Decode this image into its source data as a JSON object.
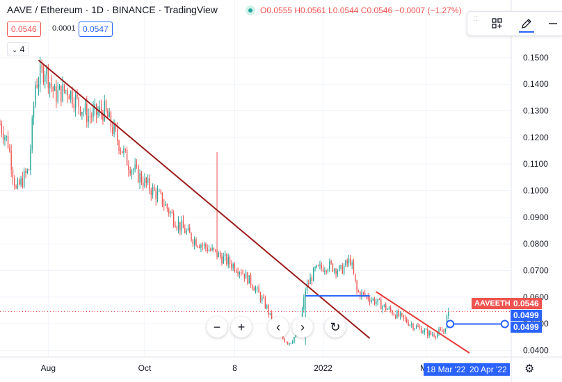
{
  "header": {
    "title": "AAVE / Ethereum · 1D · BINANCE · TradingView",
    "ohlc": "O0.0555 H0.0561 L0.0544 C0.0546 −0.0007 (−1.27%)"
  },
  "quote": {
    "bid": "0.0546",
    "spread": "0.0001",
    "ask": "0.0547"
  },
  "indicator_badge": "4",
  "nav_buttons": {
    "zoom_out": "−",
    "zoom_in": "+",
    "prev": "‹",
    "next": "›",
    "reset": "↻"
  },
  "price_scale": {
    "symbol": "AAVEETH",
    "last_price": "0.0546",
    "range_top": "0.0499",
    "range_bottom": "0.0499"
  },
  "date_range": {
    "start": "18 Mar '22",
    "end": "20 Apr '22"
  },
  "settings_icon": "gear-icon",
  "colors": {
    "up": "#26a69a",
    "down": "#ef5350",
    "trendline": "#9b1b1b",
    "red_trend": "#e53935",
    "blue": "#2962ff",
    "grid": "#f0f3fa"
  },
  "chart_data": {
    "type": "candlestick",
    "title": "AAVE / Ethereum · 1D · BINANCE · TradingView",
    "yticks": [
      "0.1500",
      "0.1400",
      "0.1300",
      "0.1200",
      "0.1100",
      "0.1000",
      "0.0900",
      "0.0800",
      "0.0700",
      "0.0600",
      "0.0500",
      "0.0400"
    ],
    "xticks": [
      "Aug",
      "Oct",
      "8",
      "2022",
      "Ma"
    ],
    "ylim": [
      0.0375,
      0.1565
    ],
    "x_range_days": [
      0,
      200
    ],
    "x_tick_positions_days": [
      30,
      90,
      146,
      201,
      265
    ],
    "x_tick_labels_order": [
      "Aug",
      "Oct",
      "8",
      "2022",
      "Ma"
    ],
    "grid": true,
    "anchors": [
      {
        "day": 0,
        "price": 0.125
      },
      {
        "day": 5,
        "price": 0.118
      },
      {
        "day": 10,
        "price": 0.1
      },
      {
        "day": 18,
        "price": 0.108
      },
      {
        "day": 22,
        "price": 0.14
      },
      {
        "day": 28,
        "price": 0.146
      },
      {
        "day": 34,
        "price": 0.136
      },
      {
        "day": 42,
        "price": 0.138
      },
      {
        "day": 55,
        "price": 0.128
      },
      {
        "day": 65,
        "price": 0.13
      },
      {
        "day": 80,
        "price": 0.11
      },
      {
        "day": 90,
        "price": 0.103
      },
      {
        "day": 100,
        "price": 0.097
      },
      {
        "day": 110,
        "price": 0.088
      },
      {
        "day": 120,
        "price": 0.082
      },
      {
        "day": 130,
        "price": 0.078
      },
      {
        "day": 140,
        "price": 0.074
      },
      {
        "day": 150,
        "price": 0.07
      },
      {
        "day": 158,
        "price": 0.064
      },
      {
        "day": 166,
        "price": 0.056
      },
      {
        "day": 172,
        "price": 0.046
      },
      {
        "day": 180,
        "price": 0.043
      },
      {
        "day": 186,
        "price": 0.047
      },
      {
        "day": 190,
        "price": 0.063
      },
      {
        "day": 196,
        "price": 0.07
      },
      {
        "day": 204,
        "price": 0.072
      },
      {
        "day": 212,
        "price": 0.07
      },
      {
        "day": 218,
        "price": 0.074
      },
      {
        "day": 222,
        "price": 0.062
      },
      {
        "day": 232,
        "price": 0.059
      },
      {
        "day": 245,
        "price": 0.054
      },
      {
        "day": 258,
        "price": 0.049
      },
      {
        "day": 268,
        "price": 0.046
      },
      {
        "day": 276,
        "price": 0.047
      },
      {
        "day": 279,
        "price": 0.0546
      }
    ],
    "spikes": [
      {
        "day": 135,
        "high": 0.1145
      },
      {
        "day": 190,
        "low": 0.042
      },
      {
        "day": 279,
        "high": 0.0561
      }
    ],
    "drawings": [
      {
        "type": "trendline",
        "color": "#9b1b1b",
        "from": {
          "day": 24,
          "price": 0.149
        },
        "to": {
          "day": 230,
          "price": 0.0445
        }
      },
      {
        "type": "trendline",
        "color": "#e53935",
        "from": {
          "day": 234,
          "price": 0.062
        },
        "to": {
          "day": 292,
          "price": 0.039
        }
      },
      {
        "type": "horizontal",
        "color": "#2962ff",
        "from": {
          "day": 190,
          "price": 0.0605
        },
        "to": {
          "day": 230,
          "price": 0.0605
        }
      },
      {
        "type": "price_range",
        "color": "#2962ff",
        "from": {
          "day": 280,
          "price": 0.0499
        },
        "to": {
          "day": 314,
          "price": 0.0499
        }
      }
    ],
    "last_price_line": 0.0546,
    "visible_day_span": [
      0,
      318
    ]
  }
}
